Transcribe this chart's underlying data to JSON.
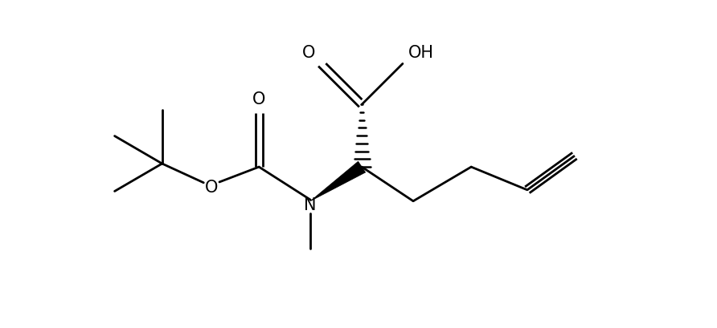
{
  "background_color": "#ffffff",
  "line_color": "#000000",
  "line_width": 2.0,
  "figsize": [
    8.92,
    4.1
  ],
  "dpi": 100,
  "xlim": [
    0,
    10
  ],
  "ylim": [
    0,
    5.0
  ]
}
